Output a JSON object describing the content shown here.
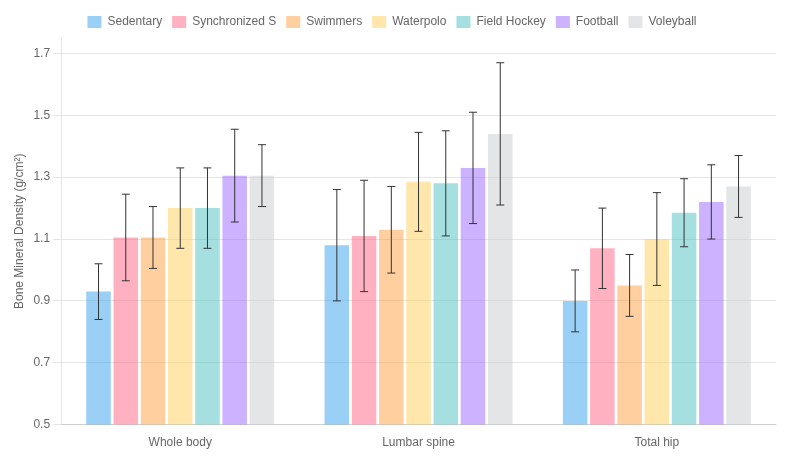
{
  "chart_data": {
    "type": "bar",
    "categories": [
      "Whole body",
      "Lumbar spine",
      "Total hip"
    ],
    "series": [
      {
        "name": "Sedentary",
        "values": [
          0.93,
          1.08,
          0.9
        ],
        "errors": [
          0.09,
          0.18,
          0.1
        ]
      },
      {
        "name": "Synchronized S",
        "values": [
          1.105,
          1.11,
          1.07
        ],
        "errors": [
          0.14,
          0.18,
          0.13
        ]
      },
      {
        "name": "Swimmers",
        "values": [
          1.105,
          1.13,
          0.95
        ],
        "errors": [
          0.1,
          0.14,
          0.1
        ]
      },
      {
        "name": "Waterpolo",
        "values": [
          1.2,
          1.285,
          1.1
        ],
        "errors": [
          0.13,
          0.16,
          0.15
        ]
      },
      {
        "name": "Field Hockey",
        "values": [
          1.2,
          1.28,
          1.185
        ],
        "errors": [
          0.13,
          0.17,
          0.11
        ]
      },
      {
        "name": "Football",
        "values": [
          1.305,
          1.33,
          1.22
        ],
        "errors": [
          0.15,
          0.18,
          0.12
        ]
      },
      {
        "name": "Voleyball",
        "values": [
          1.305,
          1.44,
          1.27
        ],
        "errors": [
          0.1,
          0.23,
          0.1
        ]
      }
    ],
    "y_label": "Bone Mineral Density (g/cm²)",
    "ylim": [
      0.5,
      1.75
    ],
    "yticks": [
      0.5,
      0.7,
      0.9,
      1.1,
      1.3,
      1.5,
      1.7
    ],
    "grid": true,
    "legend": "top"
  }
}
